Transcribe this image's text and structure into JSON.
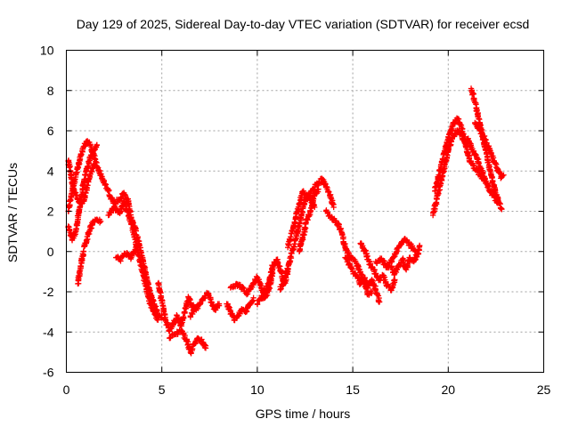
{
  "chart_data": {
    "type": "scatter",
    "title": "Day 129 of 2025, Sidereal Day-to-day VTEC variation (SDTVAR) for receiver ecsd",
    "xlabel": "GPS time / hours",
    "ylabel": "SDTVAR / TECUs",
    "xlim": [
      0,
      25
    ],
    "ylim": [
      -6,
      10
    ],
    "xticks": [
      0,
      5,
      10,
      15,
      20,
      25
    ],
    "yticks": [
      -6,
      -4,
      -2,
      0,
      2,
      4,
      6,
      8,
      10
    ],
    "grid": true,
    "marker": "+",
    "color": "#ff0000",
    "series": [
      {
        "name": "SDTVAR",
        "arcs": [
          [
            [
              0.1,
              2.0
            ],
            [
              0.3,
              3.0
            ],
            [
              0.5,
              3.8
            ],
            [
              0.7,
              4.5
            ],
            [
              0.9,
              5.2
            ],
            [
              1.1,
              5.5
            ],
            [
              1.3,
              5.2
            ],
            [
              1.5,
              4.6
            ],
            [
              1.7,
              4.0
            ],
            [
              1.9,
              3.6
            ]
          ],
          [
            [
              0.1,
              1.2
            ],
            [
              0.3,
              0.6
            ],
            [
              0.5,
              1.0
            ],
            [
              0.7,
              2.2
            ],
            [
              0.9,
              3.4
            ],
            [
              1.1,
              4.2
            ],
            [
              1.3,
              4.8
            ],
            [
              1.5,
              5.1
            ],
            [
              1.6,
              5.3
            ]
          ],
          [
            [
              0.6,
              -1.6
            ],
            [
              0.7,
              -1.0
            ],
            [
              0.8,
              -0.4
            ],
            [
              0.9,
              0.0
            ],
            [
              1.0,
              0.4
            ],
            [
              1.2,
              1.0
            ],
            [
              1.4,
              1.5
            ],
            [
              1.6,
              1.6
            ],
            [
              1.8,
              1.5
            ]
          ],
          [
            [
              0.1,
              4.5
            ],
            [
              0.2,
              4.0
            ],
            [
              0.3,
              3.4
            ],
            [
              0.5,
              2.8
            ],
            [
              0.7,
              2.4
            ],
            [
              0.9,
              2.5
            ],
            [
              1.1,
              3.3
            ],
            [
              1.3,
              4.0
            ],
            [
              1.5,
              4.3
            ]
          ],
          [
            [
              1.9,
              3.6
            ],
            [
              2.2,
              3.0
            ],
            [
              2.5,
              2.4
            ],
            [
              2.8,
              2.6
            ],
            [
              3.0,
              2.9
            ],
            [
              3.2,
              2.6
            ],
            [
              3.4,
              1.7
            ],
            [
              3.6,
              1.1
            ],
            [
              3.8,
              0.4
            ],
            [
              4.0,
              -0.4
            ],
            [
              4.2,
              -1.3
            ],
            [
              4.4,
              -2.1
            ],
            [
              4.6,
              -2.6
            ],
            [
              4.8,
              -3.1
            ],
            [
              5.0,
              -3.3
            ]
          ],
          [
            [
              2.2,
              1.8
            ],
            [
              2.5,
              2.2
            ],
            [
              2.8,
              1.9
            ],
            [
              3.0,
              2.5
            ],
            [
              3.2,
              2.0
            ],
            [
              3.4,
              1.4
            ],
            [
              3.6,
              0.6
            ],
            [
              3.8,
              -0.2
            ],
            [
              4.0,
              -1.0
            ],
            [
              4.2,
              -1.9
            ],
            [
              4.4,
              -2.6
            ],
            [
              4.6,
              -3.0
            ],
            [
              4.8,
              -3.4
            ]
          ],
          [
            [
              2.6,
              -0.3
            ],
            [
              2.8,
              -0.4
            ],
            [
              3.0,
              -0.2
            ],
            [
              3.2,
              -0.1
            ],
            [
              3.4,
              -0.3
            ],
            [
              3.6,
              0.1
            ],
            [
              3.8,
              0.4
            ]
          ],
          [
            [
              4.8,
              -1.6
            ],
            [
              5.0,
              -2.4
            ],
            [
              5.2,
              -3.4
            ],
            [
              5.4,
              -3.9
            ],
            [
              5.6,
              -3.6
            ],
            [
              5.8,
              -3.2
            ],
            [
              6.0,
              -3.7
            ],
            [
              6.2,
              -3.0
            ],
            [
              6.4,
              -2.3
            ],
            [
              6.6,
              -2.7
            ],
            [
              6.8,
              -2.9
            ]
          ],
          [
            [
              5.4,
              -4.3
            ],
            [
              5.7,
              -4.1
            ],
            [
              6.0,
              -3.9
            ],
            [
              6.3,
              -4.4
            ],
            [
              6.5,
              -5.0
            ],
            [
              6.7,
              -4.6
            ],
            [
              6.9,
              -4.3
            ],
            [
              7.1,
              -4.5
            ],
            [
              7.3,
              -4.8
            ]
          ],
          [
            [
              6.5,
              -3.2
            ],
            [
              6.8,
              -2.8
            ],
            [
              7.0,
              -2.6
            ],
            [
              7.2,
              -2.3
            ],
            [
              7.4,
              -2.1
            ],
            [
              7.6,
              -2.5
            ],
            [
              7.8,
              -2.9
            ],
            [
              8.0,
              -2.6
            ]
          ],
          [
            [
              8.4,
              -2.6
            ],
            [
              8.6,
              -3.0
            ],
            [
              8.8,
              -3.4
            ],
            [
              9.0,
              -3.2
            ],
            [
              9.2,
              -2.9
            ],
            [
              9.4,
              -3.0
            ],
            [
              9.6,
              -2.6
            ],
            [
              9.8,
              -2.3
            ]
          ],
          [
            [
              8.6,
              -1.8
            ],
            [
              8.9,
              -1.6
            ],
            [
              9.2,
              -1.8
            ],
            [
              9.5,
              -2.1
            ],
            [
              9.8,
              -1.6
            ],
            [
              10.0,
              -1.3
            ],
            [
              10.2,
              -1.8
            ],
            [
              10.4,
              -2.3
            ],
            [
              10.6,
              -1.9
            ],
            [
              10.8,
              -1.1
            ]
          ],
          [
            [
              10.0,
              -2.6
            ],
            [
              10.3,
              -2.2
            ],
            [
              10.6,
              -1.6
            ],
            [
              10.8,
              -0.7
            ],
            [
              11.0,
              -0.4
            ],
            [
              11.2,
              -0.9
            ],
            [
              11.4,
              -1.6
            ],
            [
              11.6,
              -1.0
            ]
          ],
          [
            [
              11.2,
              -1.9
            ],
            [
              11.4,
              -1.4
            ],
            [
              11.6,
              -0.9
            ],
            [
              11.8,
              -0.1
            ],
            [
              12.0,
              0.6
            ],
            [
              12.2,
              1.4
            ],
            [
              12.4,
              2.2
            ],
            [
              12.6,
              2.8
            ],
            [
              12.8,
              2.6
            ],
            [
              13.0,
              2.2
            ]
          ],
          [
            [
              11.6,
              0.2
            ],
            [
              11.8,
              0.9
            ],
            [
              12.0,
              1.6
            ],
            [
              12.2,
              2.4
            ],
            [
              12.4,
              3.0
            ],
            [
              12.6,
              2.6
            ],
            [
              12.8,
              2.9
            ],
            [
              13.0,
              3.2
            ],
            [
              13.2,
              3.4
            ],
            [
              13.4,
              3.6
            ],
            [
              13.6,
              3.2
            ],
            [
              13.8,
              2.8
            ],
            [
              14.0,
              2.2
            ]
          ],
          [
            [
              12.2,
              0.0
            ],
            [
              12.4,
              0.8
            ],
            [
              12.6,
              1.6
            ],
            [
              12.8,
              2.0
            ],
            [
              13.0,
              2.8
            ],
            [
              13.2,
              3.1
            ]
          ],
          [
            [
              13.6,
              2.0
            ],
            [
              13.8,
              1.8
            ],
            [
              14.0,
              1.6
            ],
            [
              14.2,
              1.4
            ],
            [
              14.4,
              1.0
            ],
            [
              14.6,
              0.2
            ],
            [
              14.8,
              -0.2
            ],
            [
              15.0,
              -0.4
            ],
            [
              15.2,
              -0.6
            ],
            [
              15.4,
              -1.0
            ],
            [
              15.6,
              -1.6
            ],
            [
              15.8,
              -2.1
            ],
            [
              16.0,
              -2.0
            ]
          ],
          [
            [
              14.6,
              -0.3
            ],
            [
              14.8,
              -0.6
            ],
            [
              15.0,
              -1.0
            ],
            [
              15.2,
              -1.2
            ],
            [
              15.4,
              -1.6
            ],
            [
              15.6,
              -1.3
            ],
            [
              15.8,
              -1.8
            ],
            [
              16.0,
              -1.4
            ],
            [
              16.2,
              -1.9
            ],
            [
              16.4,
              -2.5
            ]
          ],
          [
            [
              15.4,
              0.4
            ],
            [
              15.6,
              0.1
            ],
            [
              15.8,
              -0.4
            ],
            [
              16.0,
              -0.8
            ],
            [
              16.2,
              -1.1
            ],
            [
              16.4,
              -1.4
            ],
            [
              16.6,
              -1.2
            ],
            [
              16.8,
              -1.7
            ],
            [
              17.0,
              -1.9
            ],
            [
              17.2,
              -1.4
            ]
          ],
          [
            [
              17.0,
              -0.8
            ],
            [
              17.2,
              -1.1
            ],
            [
              17.4,
              -0.7
            ],
            [
              17.6,
              -0.4
            ],
            [
              17.8,
              -0.9
            ],
            [
              18.0,
              -0.3
            ],
            [
              18.2,
              -0.5
            ],
            [
              18.4,
              -0.1
            ],
            [
              18.5,
              0.3
            ]
          ],
          [
            [
              16.2,
              -0.5
            ],
            [
              16.5,
              -0.4
            ],
            [
              16.8,
              -0.8
            ],
            [
              17.1,
              -0.3
            ],
            [
              17.4,
              0.2
            ],
            [
              17.7,
              0.6
            ],
            [
              18.0,
              0.3
            ],
            [
              18.3,
              0.0
            ]
          ],
          [
            [
              19.2,
              1.8
            ],
            [
              19.4,
              2.6
            ],
            [
              19.6,
              3.4
            ],
            [
              19.8,
              4.2
            ],
            [
              20.0,
              5.0
            ],
            [
              20.2,
              5.6
            ],
            [
              20.4,
              6.0
            ],
            [
              20.6,
              5.9
            ],
            [
              20.8,
              5.6
            ],
            [
              21.0,
              5.2
            ]
          ],
          [
            [
              19.3,
              3.0
            ],
            [
              19.5,
              3.8
            ],
            [
              19.7,
              4.6
            ],
            [
              19.9,
              5.3
            ],
            [
              20.1,
              5.9
            ],
            [
              20.3,
              6.4
            ],
            [
              20.5,
              6.6
            ],
            [
              20.7,
              6.1
            ],
            [
              20.9,
              5.4
            ],
            [
              21.1,
              4.6
            ],
            [
              21.3,
              4.3
            ],
            [
              21.5,
              4.0
            ],
            [
              21.7,
              3.8
            ],
            [
              21.9,
              3.5
            ]
          ],
          [
            [
              21.2,
              8.1
            ],
            [
              21.4,
              7.4
            ],
            [
              21.6,
              6.6
            ],
            [
              21.8,
              5.7
            ],
            [
              22.0,
              4.9
            ],
            [
              22.2,
              4.0
            ],
            [
              22.4,
              3.2
            ],
            [
              22.6,
              2.6
            ],
            [
              22.8,
              2.1
            ]
          ],
          [
            [
              21.4,
              6.4
            ],
            [
              21.6,
              6.1
            ],
            [
              21.8,
              5.8
            ],
            [
              22.0,
              5.4
            ],
            [
              22.2,
              5.0
            ],
            [
              22.4,
              4.5
            ],
            [
              22.6,
              4.0
            ],
            [
              22.8,
              3.7
            ],
            [
              22.9,
              3.8
            ]
          ],
          [
            [
              21.0,
              5.6
            ],
            [
              21.2,
              5.2
            ],
            [
              21.4,
              4.8
            ],
            [
              21.6,
              4.4
            ],
            [
              21.8,
              3.9
            ],
            [
              22.0,
              3.4
            ],
            [
              22.2,
              3.0
            ],
            [
              22.4,
              2.8
            ],
            [
              22.6,
              2.4
            ]
          ]
        ]
      }
    ]
  }
}
